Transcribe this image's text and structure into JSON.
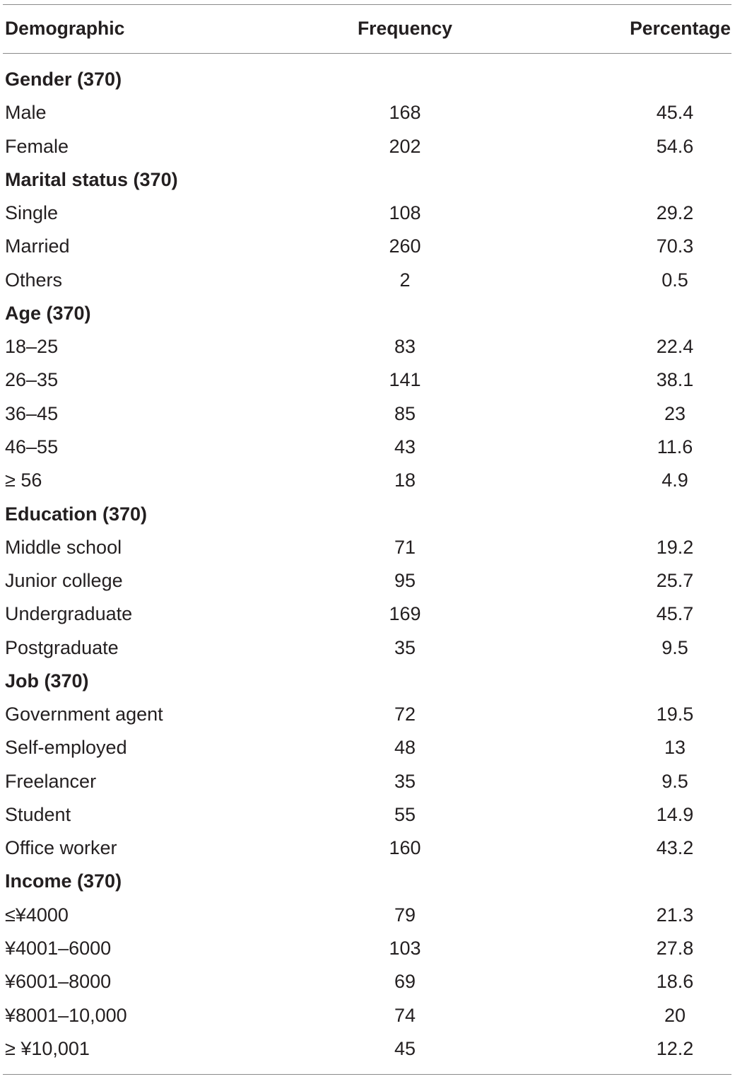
{
  "table": {
    "headers": {
      "demographic": "Demographic",
      "frequency": "Frequency",
      "percentage": "Percentage"
    },
    "rows": [
      {
        "type": "group",
        "label": "Gender (370)",
        "frequency": "",
        "percentage": ""
      },
      {
        "type": "item",
        "label": "Male",
        "frequency": "168",
        "percentage": "45.4"
      },
      {
        "type": "item",
        "label": "Female",
        "frequency": "202",
        "percentage": "54.6"
      },
      {
        "type": "group",
        "label": "Marital status (370)",
        "frequency": "",
        "percentage": ""
      },
      {
        "type": "item",
        "label": "Single",
        "frequency": "108",
        "percentage": "29.2"
      },
      {
        "type": "item",
        "label": "Married",
        "frequency": "260",
        "percentage": "70.3"
      },
      {
        "type": "item",
        "label": "Others",
        "frequency": "2",
        "percentage": "0.5"
      },
      {
        "type": "group",
        "label": "Age (370)",
        "frequency": "",
        "percentage": ""
      },
      {
        "type": "item",
        "label": "18–25",
        "frequency": "83",
        "percentage": "22.4"
      },
      {
        "type": "item",
        "label": "26–35",
        "frequency": "141",
        "percentage": "38.1"
      },
      {
        "type": "item",
        "label": "36–45",
        "frequency": "85",
        "percentage": "23"
      },
      {
        "type": "item",
        "label": "46–55",
        "frequency": "43",
        "percentage": "11.6"
      },
      {
        "type": "item",
        "label": " ≥ 56",
        "frequency": "18",
        "percentage": "4.9"
      },
      {
        "type": "group",
        "label": "Education (370)",
        "frequency": "",
        "percentage": ""
      },
      {
        "type": "item",
        "label": "Middle school",
        "frequency": "71",
        "percentage": "19.2"
      },
      {
        "type": "item",
        "label": "Junior college",
        "frequency": "95",
        "percentage": "25.7"
      },
      {
        "type": "item",
        "label": "Undergraduate",
        "frequency": "169",
        "percentage": "45.7"
      },
      {
        "type": "item",
        "label": "Postgraduate",
        "frequency": "35",
        "percentage": "9.5"
      },
      {
        "type": "group",
        "label": "Job (370)",
        "frequency": "",
        "percentage": ""
      },
      {
        "type": "item",
        "label": "Government agent",
        "frequency": "72",
        "percentage": "19.5"
      },
      {
        "type": "item",
        "label": "Self-employed",
        "frequency": "48",
        "percentage": "13"
      },
      {
        "type": "item",
        "label": "Freelancer",
        "frequency": "35",
        "percentage": "9.5"
      },
      {
        "type": "item",
        "label": "Student",
        "frequency": "55",
        "percentage": "14.9"
      },
      {
        "type": "item",
        "label": "Office worker",
        "frequency": "160",
        "percentage": "43.2"
      },
      {
        "type": "group",
        "label": "Income (370)",
        "frequency": "",
        "percentage": ""
      },
      {
        "type": "item",
        "label": "≤¥4000",
        "frequency": "79",
        "percentage": "21.3"
      },
      {
        "type": "item",
        "label": "¥4001–6000",
        "frequency": "103",
        "percentage": "27.8"
      },
      {
        "type": "item",
        "label": "¥6001–8000",
        "frequency": "69",
        "percentage": "18.6"
      },
      {
        "type": "item",
        "label": "¥8001–10,000",
        "frequency": "74",
        "percentage": "20"
      },
      {
        "type": "item",
        "label": "≥ ¥10,001",
        "frequency": "45",
        "percentage": "12.2"
      }
    ]
  }
}
